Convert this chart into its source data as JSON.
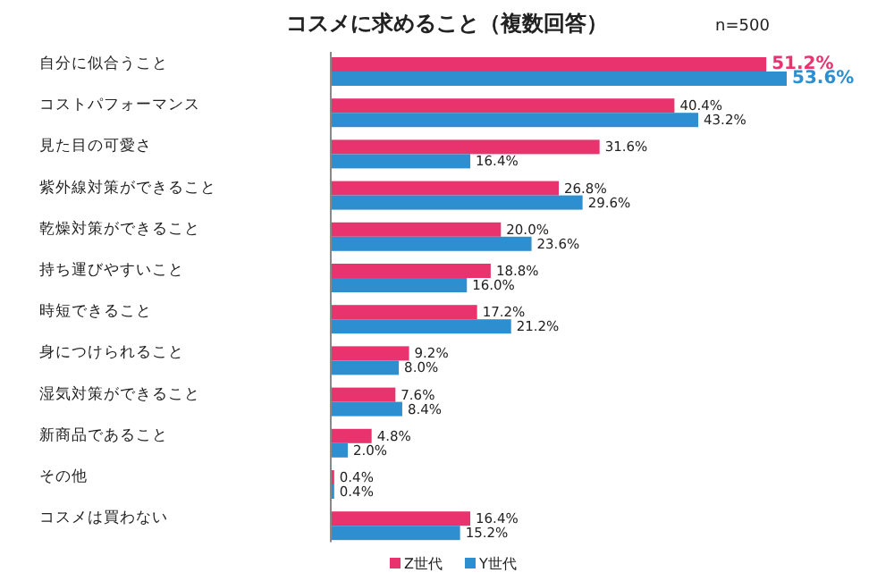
{
  "chart_data": {
    "type": "bar",
    "orientation": "horizontal",
    "title": "コスメに求めること（複数回答）",
    "annotations": [
      "n=500"
    ],
    "categories": [
      "自分に似合うこと",
      "コストパフォーマンス",
      "見た目の可愛さ",
      "紫外線対策ができること",
      "乾燥対策ができること",
      "持ち運びやすいこと",
      "時短できること",
      "身につけられること",
      "湿気対策ができること",
      "新商品であること",
      "その他",
      "コスメは買わない"
    ],
    "series": [
      {
        "name": "Z世代",
        "color": "#e8336f",
        "values": [
          51.2,
          40.4,
          31.6,
          26.8,
          20.0,
          18.8,
          17.2,
          9.2,
          7.6,
          4.8,
          0.4,
          16.4
        ],
        "value_labels": [
          "51.2%",
          "40.4%",
          "31.6%",
          "26.8%",
          "20.0%",
          "18.8%",
          "17.2%",
          "9.2%",
          "7.6%",
          "4.8%",
          "0.4%",
          "16.4%"
        ]
      },
      {
        "name": "Y世代",
        "color": "#2e8fd0",
        "values": [
          53.6,
          43.2,
          16.4,
          29.6,
          23.6,
          16.0,
          21.2,
          8.0,
          8.4,
          2.0,
          0.4,
          15.2
        ],
        "value_labels": [
          "53.6%",
          "43.2%",
          "16.4%",
          "29.6%",
          "23.6%",
          "16.0%",
          "21.2%",
          "8.0%",
          "8.4%",
          "2.0%",
          "0.4%",
          "15.2%"
        ]
      }
    ],
    "legend": "bottom"
  }
}
